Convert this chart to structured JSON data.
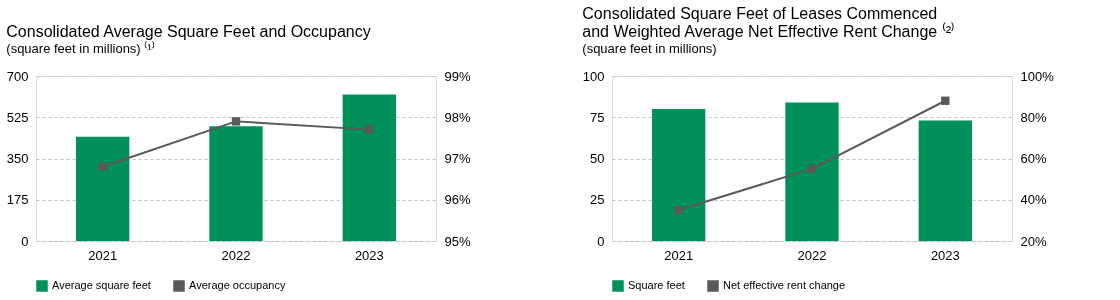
{
  "chart_data": [
    {
      "type": "bar",
      "title": "Consolidated Average Square Feet and Occupancy",
      "subtitle": "(square feet in millions) ⁽¹⁾",
      "categories": [
        "2021",
        "2022",
        "2023"
      ],
      "series": [
        {
          "name": "Average square feet",
          "color": "#00905a",
          "values": [
            442,
            487,
            621
          ]
        },
        {
          "name": "Average occupancy",
          "type": "line",
          "axis": "y2",
          "color": "#595959",
          "values": [
            96.8,
            97.9,
            97.7
          ]
        }
      ],
      "ylim": [
        0,
        700
      ],
      "yticks": [
        0,
        175,
        350,
        525,
        700
      ],
      "y2lim": [
        95,
        99
      ],
      "y2ticks": [
        {
          "value": 95,
          "label": "95%"
        },
        {
          "value": 96,
          "label": "96%"
        },
        {
          "value": 97,
          "label": "97%"
        },
        {
          "value": 98,
          "label": "98%"
        },
        {
          "value": 99,
          "label": "99%"
        }
      ],
      "grid": "y",
      "legend": "bottom",
      "marker": "square",
      "line_style": "solid"
    },
    {
      "type": "bar",
      "title": "Consolidated Square Feet of Leases Commenced\nand Weighted Average Net Effective Rent Change ⁽²⁾",
      "subtitle": "(square feet in millions)",
      "categories": [
        "2021",
        "2022",
        "2023"
      ],
      "series": [
        {
          "name": "Square feet",
          "color": "#00905a",
          "values": [
            80,
            84,
            73
          ]
        },
        {
          "name": "Net effective rent change",
          "type": "line",
          "axis": "y2",
          "color": "#595959",
          "values": [
            35,
            55,
            88
          ]
        }
      ],
      "ylim": [
        0,
        100
      ],
      "yticks": [
        0,
        25,
        50,
        75,
        100
      ],
      "y2lim": [
        20,
        100
      ],
      "y2ticks": [
        {
          "value": 20,
          "label": "20%"
        },
        {
          "value": 40,
          "label": "40%"
        },
        {
          "value": 60,
          "label": "60%"
        },
        {
          "value": 80,
          "label": "80%"
        },
        {
          "value": 100,
          "label": "100%"
        }
      ],
      "grid": "y",
      "legend": "bottom",
      "marker": "square",
      "line_style": "solid"
    }
  ]
}
